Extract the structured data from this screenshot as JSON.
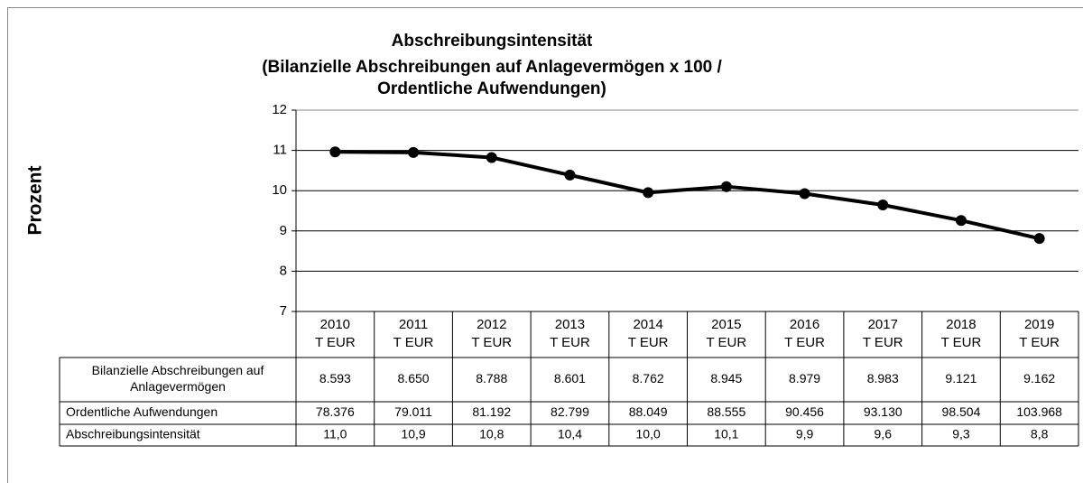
{
  "chart_data": {
    "type": "line",
    "title": [
      "Abschreibungsintensität",
      "(Bilanzielle Abschreibungen auf Anlagevermögen x 100 /",
      "Ordentliche Aufwendungen)"
    ],
    "ylabel": "Prozent",
    "categories": [
      "2010",
      "2011",
      "2012",
      "2013",
      "2014",
      "2015",
      "2016",
      "2017",
      "2018",
      "2019"
    ],
    "unit": "T EUR",
    "ylim": [
      7,
      12
    ],
    "yticks": [
      7,
      8,
      9,
      10,
      11,
      12
    ],
    "grid": true,
    "series": [
      {
        "name": "Abschreibungsintensität",
        "color": "#000000",
        "values": [
          10.964,
          10.948,
          10.824,
          10.388,
          9.951,
          10.101,
          9.926,
          9.646,
          9.26,
          8.812
        ],
        "value_labels": [
          "11,0",
          "10,9",
          "10,8",
          "10,4",
          "10,0",
          "10,1",
          "9,9",
          "9,6",
          "9,3",
          "8,8"
        ]
      }
    ],
    "table": [
      {
        "label": [
          "Bilanzielle Abschreibungen auf",
          "Anlagevermögen"
        ],
        "values": [
          "8.593",
          "8.650",
          "8.788",
          "8.601",
          "8.762",
          "8.945",
          "8.979",
          "8.983",
          "9.121",
          "9.162"
        ]
      },
      {
        "label": "Ordentliche Aufwendungen",
        "values": [
          "78.376",
          "79.011",
          "81.192",
          "82.799",
          "88.049",
          "88.555",
          "90.456",
          "93.130",
          "98.504",
          "103.968"
        ]
      }
    ]
  }
}
